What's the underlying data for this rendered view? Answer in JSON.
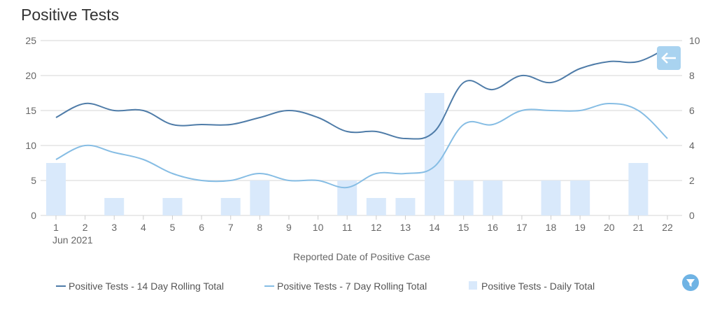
{
  "chart_data": {
    "type": "bar+line",
    "title": "Positive Tests",
    "xlabel": "Reported Date of Positive Case",
    "x_sublabel": "Jun 2021",
    "categories": [
      "1",
      "2",
      "3",
      "4",
      "5",
      "6",
      "7",
      "8",
      "9",
      "10",
      "11",
      "12",
      "13",
      "14",
      "15",
      "16",
      "17",
      "18",
      "19",
      "20",
      "21",
      "22"
    ],
    "ylim_left": [
      0,
      25
    ],
    "yticks_left": [
      0,
      5,
      10,
      15,
      20,
      25
    ],
    "ylim_right": [
      0,
      10
    ],
    "yticks_right": [
      0,
      2,
      4,
      6,
      8,
      10
    ],
    "grid": true,
    "legend_position": "bottom",
    "series": [
      {
        "name": "Positive Tests - 14 Day Rolling Total",
        "type": "line",
        "axis": "left",
        "color": "#4f7ca8",
        "values": [
          14,
          16,
          15,
          15,
          13,
          13,
          13,
          14,
          15,
          14,
          12,
          12,
          11,
          12,
          19,
          18,
          20,
          19,
          21,
          22,
          22,
          24
        ]
      },
      {
        "name": "Positive Tests - 7 Day Rolling Total",
        "type": "line",
        "axis": "left",
        "color": "#86bde4",
        "values": [
          8,
          10,
          9,
          8,
          6,
          5,
          5,
          6,
          5,
          5,
          4,
          6,
          6,
          7,
          13,
          13,
          15,
          15,
          15,
          16,
          15,
          11
        ]
      },
      {
        "name": "Positive Tests - Daily Total",
        "type": "bar",
        "axis": "right",
        "color": "#d9e9fb",
        "values": [
          3,
          0,
          1,
          0,
          1,
          0,
          1,
          2,
          0,
          0,
          2,
          1,
          1,
          7,
          2,
          2,
          0,
          2,
          2,
          0,
          3,
          0
        ]
      }
    ]
  },
  "controls": {
    "back_icon": "arrow-left-icon",
    "filter_icon": "filter-icon"
  }
}
